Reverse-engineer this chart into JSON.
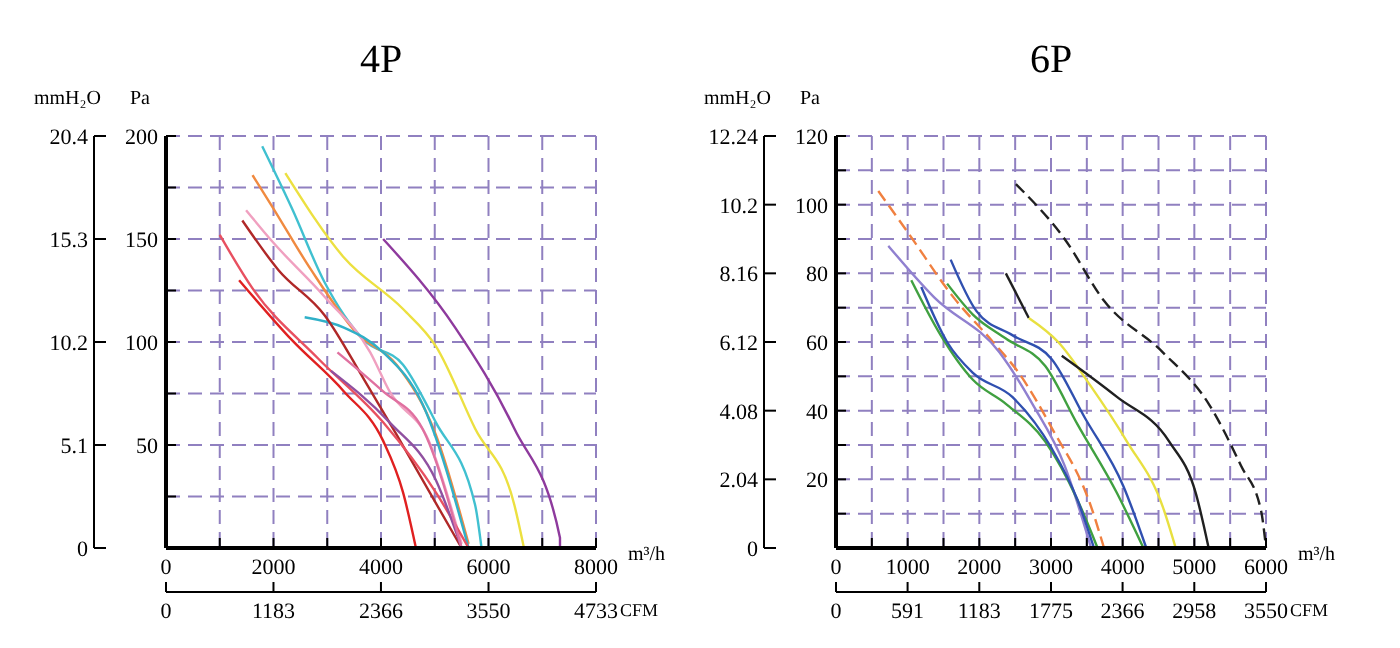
{
  "chart_data": [
    {
      "type": "line",
      "title": "4P",
      "xlabel": "m³/h",
      "ylabel": "Pa",
      "y2label": "mmH₂O",
      "x2label": "CFM",
      "grid": true,
      "xlim": [
        0,
        8000
      ],
      "ylim": [
        0,
        200
      ],
      "xticks": [
        0,
        {
          "value": 1000,
          "label": null
        },
        2000,
        {
          "value": 3000,
          "label": null
        },
        4000,
        {
          "value": 5000,
          "label": null
        },
        6000,
        {
          "value": 7000,
          "label": null
        },
        8000
      ],
      "yticks": [
        {
          "value": 0,
          "label": null
        },
        {
          "value": 25,
          "label": null
        },
        50,
        {
          "value": 75,
          "label": null
        },
        100,
        {
          "value": 125,
          "label": null
        },
        150,
        {
          "value": 175,
          "label": null
        },
        200
      ],
      "y2lim": [
        0,
        20.4
      ],
      "y2ticks": [
        0,
        5.1,
        10.2,
        15.3,
        20.4
      ],
      "x2lim": [
        0,
        4733
      ],
      "x2ticks": [
        0,
        1183,
        2366,
        3550,
        4733
      ],
      "series": [
        {
          "color": "#8e3a9d",
          "x": [
            4040,
            5380,
            6480,
            7330,
            7330
          ],
          "values": [
            150,
            107,
            58,
            5,
            0
          ]
        },
        {
          "color": "#ece040",
          "x": [
            2220,
            3310,
            4410,
            5020,
            5750,
            6480,
            6660
          ],
          "values": [
            182,
            141,
            116,
            98,
            58,
            21,
            0
          ]
        },
        {
          "color": "#40c0d0",
          "x": [
            1790,
            2340,
            2950,
            3680,
            4410,
            5020,
            5750,
            5870
          ],
          "values": [
            195,
            165,
            129,
            101,
            89,
            61,
            21,
            0
          ]
        },
        {
          "color": "#f08a40",
          "x": [
            1610,
            1970,
            2700,
            3560,
            4290,
            5020,
            5630
          ],
          "values": [
            181,
            166,
            135,
            104,
            89,
            55,
            2
          ]
        },
        {
          "color": "#f0a0c0",
          "x": [
            1490,
            1970,
            2950,
            3800,
            4160,
            4890,
            5500
          ],
          "values": [
            164,
            149,
            122,
            95,
            76,
            52,
            2
          ]
        },
        {
          "color": "#30b0c8",
          "x": [
            2580,
            3310,
            4040,
            4770,
            5630
          ],
          "values": [
            112,
            107,
            95,
            70,
            0
          ]
        },
        {
          "color": "#b02828",
          "x": [
            1420,
            2090,
            2950,
            3680,
            4290,
            5500
          ],
          "values": [
            159,
            135,
            113,
            82,
            55,
            0
          ]
        },
        {
          "color": "#e85060",
          "x": [
            1000,
            1610,
            2830,
            4040,
            5020,
            5630
          ],
          "values": [
            152,
            126,
            92,
            61,
            27,
            0
          ]
        },
        {
          "color": "#e02020",
          "x": [
            1360,
            2340,
            3310,
            4040,
            4410,
            4650
          ],
          "values": [
            130,
            101,
            76,
            52,
            27,
            0
          ]
        },
        {
          "color": "#9050a0",
          "x": [
            3070,
            4160,
            5020,
            5500
          ],
          "values": [
            86,
            61,
            33,
            0
          ]
        },
        {
          "color": "#e070a0",
          "x": [
            3190,
            4040,
            4770,
            5500
          ],
          "values": [
            95,
            76,
            58,
            0
          ]
        }
      ]
    },
    {
      "type": "line",
      "title": "6P",
      "xlabel": "m³/h",
      "ylabel": "Pa",
      "y2label": "mmH₂O",
      "x2label": "CFM",
      "grid": true,
      "xlim": [
        0,
        6000
      ],
      "ylim": [
        0,
        120
      ],
      "xticks": [
        0,
        {
          "value": 500,
          "label": null
        },
        1000,
        {
          "value": 1500,
          "label": null
        },
        2000,
        {
          "value": 2500,
          "label": null
        },
        3000,
        {
          "value": 3500,
          "label": null
        },
        4000,
        {
          "value": 4500,
          "label": null
        },
        5000,
        {
          "value": 5500,
          "label": null
        },
        6000
      ],
      "yticks": [
        {
          "value": 0,
          "label": null
        },
        {
          "value": 10,
          "label": null
        },
        20,
        {
          "value": 30,
          "label": null
        },
        40,
        {
          "value": 50,
          "label": null
        },
        60,
        {
          "value": 70,
          "label": null
        },
        80,
        {
          "value": 90,
          "label": null
        },
        100,
        {
          "value": 110,
          "label": null
        },
        120
      ],
      "y2lim": [
        0,
        12.24
      ],
      "y2ticks": [
        0,
        2.04,
        4.08,
        6.12,
        8.16,
        10.2,
        12.24
      ],
      "x2lim": [
        0,
        3550
      ],
      "x2ticks": [
        0,
        591,
        1183,
        1775,
        2366,
        2958,
        3550
      ],
      "series": [
        {
          "color": "#202020",
          "line_style": "dashed",
          "x": [
            2510,
            3190,
            3740,
            4560,
            5200,
            5650,
            5930,
            6000
          ],
          "values": [
            106,
            90,
            72,
            57,
            42,
            24,
            11,
            0
          ]
        },
        {
          "color": "#202020",
          "x": [
            2370,
            2690
          ],
          "values": [
            80,
            67
          ]
        },
        {
          "color": "#e8e040",
          "x": [
            2690,
            3100,
            3560,
            4060,
            4560,
            4740
          ],
          "values": [
            67,
            60,
            47,
            31,
            12,
            0
          ]
        },
        {
          "color": "#202020",
          "x": [
            3150,
            3920,
            4650,
            5020,
            5200
          ],
          "values": [
            56,
            44,
            31,
            16,
            0
          ]
        },
        {
          "color": "#f08040",
          "line_style": "dashed",
          "x": [
            590,
            1000,
            1640,
            2190,
            2550,
            3010,
            3560,
            3740
          ],
          "values": [
            104,
            92,
            73,
            60,
            51,
            35,
            12,
            0
          ]
        },
        {
          "color": "#9080d0",
          "x": [
            730,
            1370,
            2280,
            2740,
            3190,
            3560
          ],
          "values": [
            88,
            73,
            57,
            42,
            24,
            0
          ]
        },
        {
          "color": "#40a040",
          "x": [
            1550,
            1910,
            2370,
            2920,
            3370,
            3920,
            4290
          ],
          "values": [
            77,
            68,
            61,
            53,
            36,
            16,
            0
          ]
        },
        {
          "color": "#3050b0",
          "x": [
            1600,
            1960,
            2460,
            3010,
            3470,
            4010,
            4330
          ],
          "values": [
            84,
            69,
            62,
            55,
            38,
            18,
            0
          ]
        },
        {
          "color": "#40a040",
          "x": [
            1050,
            1460,
            1910,
            2370,
            2920,
            3370,
            3650
          ],
          "values": [
            78,
            62,
            49,
            42,
            31,
            14,
            0
          ]
        },
        {
          "color": "#3050b0",
          "x": [
            1190,
            1550,
            1910,
            2460,
            3010,
            3370,
            3600
          ],
          "values": [
            76,
            60,
            51,
            44,
            29,
            14,
            0
          ]
        }
      ]
    }
  ]
}
